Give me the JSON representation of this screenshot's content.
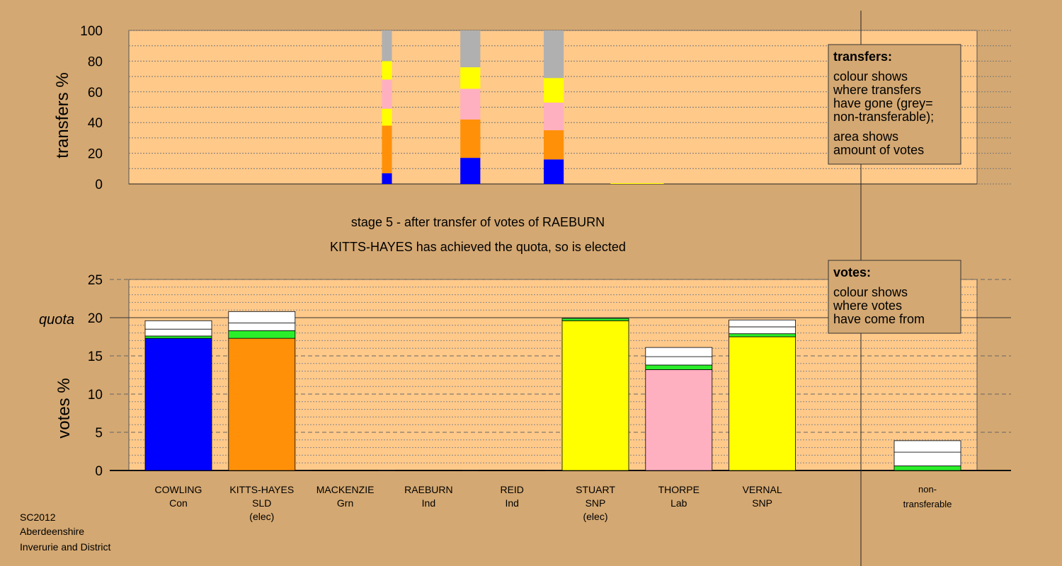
{
  "colors": {
    "background": "#d4a872",
    "plot_bg": "#ffc98a",
    "Con": "#0000ff",
    "SLD": "#ff9008",
    "Grn": "#2aee2a",
    "SNP": "#ffff00",
    "Lab": "#ffb0c0",
    "Ind": "#ffffff",
    "nontransferable": "#b0b0b0"
  },
  "header": {
    "stage": "stage 5 - after transfer of votes of RAEBURN",
    "status": "KITTS-HAYES has achieved the quota, so is elected"
  },
  "footer": {
    "line1": "SC2012",
    "line2": "Aberdeenshire",
    "line3": "Inverurie and District"
  },
  "legend_transfers": {
    "title": "transfers:",
    "line1": "colour shows",
    "line2": "where transfers",
    "line3": "have gone (grey=",
    "line4": "non-transferable);",
    "line5": "area shows",
    "line6": "amount of votes"
  },
  "legend_votes": {
    "title": "votes:",
    "line1": "colour shows",
    "line2": "where votes",
    "line3": "have come from"
  },
  "chart_data": [
    {
      "type": "bar",
      "ylabel": "transfers %",
      "ylim": [
        0,
        100
      ],
      "yticks": [
        0,
        20,
        40,
        60,
        80,
        100
      ],
      "grid": true,
      "bars": [
        {
          "slot": 2.5,
          "width_share": 0.15,
          "segments": [
            {
              "party": "Con",
              "value": 7
            },
            {
              "party": "SLD",
              "value": 31
            },
            {
              "party": "SNP",
              "value": 11
            },
            {
              "party": "Lab",
              "value": 19
            },
            {
              "party": "SNP",
              "value": 12
            },
            {
              "party": "nontransferable",
              "value": 20
            }
          ]
        },
        {
          "slot": 3.5,
          "width_share": 0.3,
          "segments": [
            {
              "party": "Con",
              "value": 17
            },
            {
              "party": "SLD",
              "value": 25
            },
            {
              "party": "Lab",
              "value": 20
            },
            {
              "party": "SNP",
              "value": 14
            },
            {
              "party": "nontransferable",
              "value": 24
            }
          ]
        },
        {
          "slot": 4.5,
          "width_share": 0.3,
          "segments": [
            {
              "party": "Con",
              "value": 16
            },
            {
              "party": "SLD",
              "value": 19
            },
            {
              "party": "Lab",
              "value": 18
            },
            {
              "party": "SNP",
              "value": 16
            },
            {
              "party": "nontransferable",
              "value": 31
            }
          ]
        },
        {
          "slot": 5.5,
          "width_share": 0.8,
          "segments": [
            {
              "party": "SNP",
              "value": 0.5
            }
          ]
        }
      ]
    },
    {
      "type": "bar",
      "ylabel": "votes %",
      "quota_label": "quota",
      "quota": 20,
      "ylim": [
        0,
        25
      ],
      "yticks": [
        0,
        5,
        10,
        15,
        20,
        25
      ],
      "grid": true,
      "categories": [
        {
          "name": "COWLING",
          "party": "Con",
          "note": ""
        },
        {
          "name": "KITTS-HAYES",
          "party": "SLD",
          "note": "(elec)"
        },
        {
          "name": "MACKENZIE",
          "party": "Grn",
          "note": ""
        },
        {
          "name": "RAEBURN",
          "party": "Ind",
          "note": ""
        },
        {
          "name": "REID",
          "party": "Ind",
          "note": ""
        },
        {
          "name": "STUART",
          "party": "SNP",
          "note": "(elec)"
        },
        {
          "name": "THORPE",
          "party": "Lab",
          "note": ""
        },
        {
          "name": "VERNAL",
          "party": "SNP",
          "note": ""
        }
      ],
      "nontransferable_label": [
        "non-",
        "transferable"
      ],
      "stacks": [
        [
          {
            "party": "Con",
            "value": 17.3
          },
          {
            "party": "Grn",
            "value": 0.3
          },
          {
            "party": "Ind",
            "value": 0.9
          },
          {
            "party": "Ind",
            "value": 1.1
          }
        ],
        [
          {
            "party": "SLD",
            "value": 17.3
          },
          {
            "party": "Grn",
            "value": 1.0
          },
          {
            "party": "Ind",
            "value": 1.0
          },
          {
            "party": "Ind",
            "value": 1.5
          }
        ],
        [],
        [],
        [],
        [
          {
            "party": "SNP",
            "value": 19.6
          },
          {
            "party": "Grn",
            "value": 0.3
          }
        ],
        [
          {
            "party": "Lab",
            "value": 13.2
          },
          {
            "party": "Grn",
            "value": 0.6
          },
          {
            "party": "Ind",
            "value": 1.1
          },
          {
            "party": "Ind",
            "value": 1.2
          }
        ],
        [
          {
            "party": "SNP",
            "value": 17.5
          },
          {
            "party": "Grn",
            "value": 0.4
          },
          {
            "party": "Ind",
            "value": 0.9
          },
          {
            "party": "Ind",
            "value": 0.9
          }
        ],
        [
          {
            "party": "Grn",
            "value": 0.6
          },
          {
            "party": "Ind",
            "value": 1.8
          },
          {
            "party": "Ind",
            "value": 1.5
          }
        ]
      ]
    }
  ]
}
